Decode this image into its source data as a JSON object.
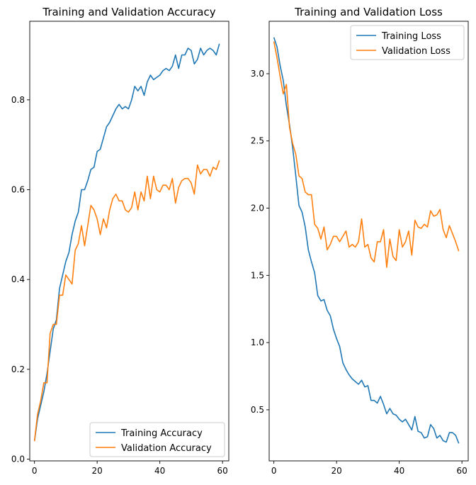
{
  "chart_data": [
    {
      "type": "line",
      "title": "Training and Validation Accuracy",
      "xlabel": "",
      "ylabel": "",
      "xlim": [
        -1.5,
        62
      ],
      "ylim": [
        -0.004,
        0.975
      ],
      "xticks": [
        0,
        20,
        40,
        60
      ],
      "xtick_labels": [
        "0",
        "20",
        "40",
        "60"
      ],
      "yticks": [
        0.0,
        0.2,
        0.4,
        0.6,
        0.8
      ],
      "ytick_labels": [
        "0.0",
        "0.2",
        "0.4",
        "0.6",
        "0.8"
      ],
      "grid": false,
      "legend_position": "lower-right",
      "x": [
        0,
        1,
        2,
        3,
        4,
        5,
        6,
        7,
        8,
        9,
        10,
        11,
        12,
        13,
        14,
        15,
        16,
        17,
        18,
        19,
        20,
        21,
        22,
        23,
        24,
        25,
        26,
        27,
        28,
        29,
        30,
        31,
        32,
        33,
        34,
        35,
        36,
        37,
        38,
        39,
        40,
        41,
        42,
        43,
        44,
        45,
        46,
        47,
        48,
        49,
        50,
        51,
        52,
        53,
        54,
        55,
        56,
        57,
        58,
        59
      ],
      "series": [
        {
          "name": "Training Accuracy",
          "color": "#1f77b4",
          "values": [
            0.04,
            0.09,
            0.12,
            0.15,
            0.19,
            0.24,
            0.29,
            0.31,
            0.38,
            0.41,
            0.44,
            0.46,
            0.5,
            0.53,
            0.55,
            0.6,
            0.6,
            0.62,
            0.645,
            0.65,
            0.685,
            0.69,
            0.715,
            0.74,
            0.75,
            0.765,
            0.78,
            0.79,
            0.78,
            0.785,
            0.78,
            0.8,
            0.83,
            0.82,
            0.83,
            0.81,
            0.84,
            0.855,
            0.845,
            0.85,
            0.855,
            0.865,
            0.87,
            0.865,
            0.875,
            0.9,
            0.87,
            0.9,
            0.9,
            0.915,
            0.91,
            0.88,
            0.89,
            0.915,
            0.9,
            0.91,
            0.915,
            0.91,
            0.9,
            0.925
          ]
        },
        {
          "name": "Validation Accuracy",
          "color": "#ff7f0e",
          "values": [
            0.04,
            0.1,
            0.13,
            0.17,
            0.17,
            0.28,
            0.3,
            0.3,
            0.365,
            0.365,
            0.41,
            0.4,
            0.39,
            0.465,
            0.48,
            0.52,
            0.475,
            0.52,
            0.565,
            0.555,
            0.535,
            0.5,
            0.535,
            0.515,
            0.555,
            0.58,
            0.59,
            0.575,
            0.575,
            0.555,
            0.55,
            0.56,
            0.595,
            0.555,
            0.595,
            0.575,
            0.63,
            0.58,
            0.63,
            0.6,
            0.595,
            0.61,
            0.61,
            0.6,
            0.625,
            0.57,
            0.605,
            0.62,
            0.625,
            0.625,
            0.615,
            0.59,
            0.655,
            0.635,
            0.645,
            0.645,
            0.63,
            0.65,
            0.645,
            0.665
          ]
        }
      ]
    },
    {
      "type": "line",
      "title": "Training and Validation Loss",
      "xlabel": "",
      "ylabel": "",
      "xlim": [
        -1.5,
        62
      ],
      "ylim": [
        0.12,
        3.39
      ],
      "xticks": [
        0,
        20,
        40,
        60
      ],
      "xtick_labels": [
        "0",
        "20",
        "40",
        "60"
      ],
      "yticks": [
        0.5,
        1.0,
        1.5,
        2.0,
        2.5,
        3.0
      ],
      "ytick_labels": [
        "0.5",
        "1.0",
        "1.5",
        "2.0",
        "2.5",
        "3.0"
      ],
      "grid": false,
      "legend_position": "upper-right",
      "x": [
        0,
        1,
        2,
        3,
        4,
        5,
        6,
        7,
        8,
        9,
        10,
        11,
        12,
        13,
        14,
        15,
        16,
        17,
        18,
        19,
        20,
        21,
        22,
        23,
        24,
        25,
        26,
        27,
        28,
        29,
        30,
        31,
        32,
        33,
        34,
        35,
        36,
        37,
        38,
        39,
        40,
        41,
        42,
        43,
        44,
        45,
        46,
        47,
        48,
        49,
        50,
        51,
        52,
        53,
        54,
        55,
        56,
        57,
        58,
        59
      ],
      "series": [
        {
          "name": "Training Loss",
          "color": "#1f77b4",
          "values": [
            3.27,
            3.2,
            3.06,
            2.95,
            2.76,
            2.62,
            2.45,
            2.24,
            2.02,
            1.97,
            1.86,
            1.69,
            1.6,
            1.52,
            1.35,
            1.31,
            1.32,
            1.24,
            1.2,
            1.1,
            1.03,
            0.97,
            0.85,
            0.8,
            0.76,
            0.73,
            0.71,
            0.69,
            0.72,
            0.67,
            0.68,
            0.57,
            0.57,
            0.55,
            0.6,
            0.54,
            0.47,
            0.51,
            0.47,
            0.46,
            0.43,
            0.41,
            0.43,
            0.39,
            0.35,
            0.45,
            0.34,
            0.33,
            0.29,
            0.3,
            0.39,
            0.36,
            0.29,
            0.31,
            0.27,
            0.26,
            0.33,
            0.33,
            0.31,
            0.25
          ]
        },
        {
          "name": "Validation Loss",
          "color": "#ff7f0e",
          "values": [
            3.24,
            3.12,
            2.98,
            2.85,
            2.92,
            2.6,
            2.48,
            2.4,
            2.24,
            2.22,
            2.12,
            2.1,
            2.1,
            1.88,
            1.85,
            1.77,
            1.86,
            1.69,
            1.73,
            1.79,
            1.79,
            1.75,
            1.79,
            1.83,
            1.71,
            1.73,
            1.71,
            1.75,
            1.92,
            1.71,
            1.73,
            1.63,
            1.6,
            1.75,
            1.75,
            1.84,
            1.56,
            1.77,
            1.64,
            1.61,
            1.84,
            1.71,
            1.75,
            1.83,
            1.65,
            1.91,
            1.86,
            1.85,
            1.88,
            1.86,
            1.98,
            1.94,
            1.95,
            1.99,
            1.84,
            1.78,
            1.87,
            1.81,
            1.75,
            1.68
          ]
        }
      ]
    }
  ]
}
